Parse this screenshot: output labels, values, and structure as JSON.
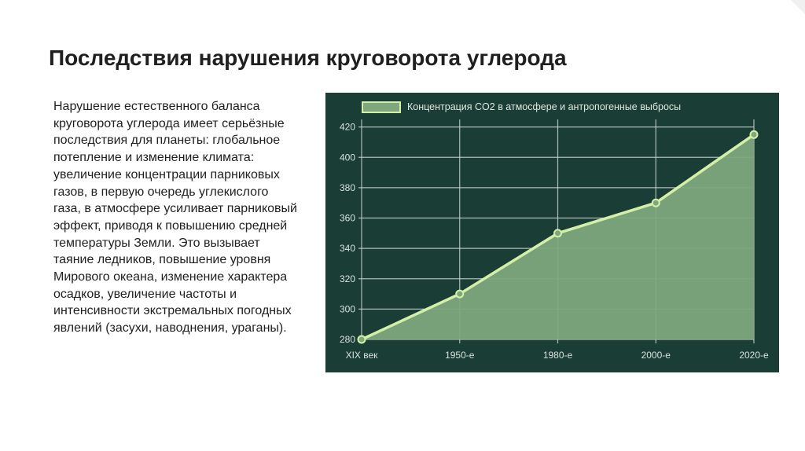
{
  "slide": {
    "title": "Последствия нарушения круговорота углерода",
    "body": "Нарушение естественного баланса круговорота углерода имеет серьёзные последствия для планеты: глобальное потепление и изменение климата: увеличение концентрации парниковых газов, в первую очередь углекислого газа, в атмосфере усиливает парниковый эффект, приводя к повышению средней температуры Земли. Это вызывает таяние ледников, повышение уровня Мирового океана, изменение характера осадков, увеличение частоты и интенсивности экстремальных погодных явлений (засухи, наводнения, ураганы)."
  },
  "chart_data": {
    "type": "area",
    "categories": [
      "XIX век",
      "1950-е",
      "1980-е",
      "2000-е",
      "2020-е"
    ],
    "series": [
      {
        "name": "Концентрация CO2 в атмосфере и антропогенные выбросы",
        "values": [
          280,
          310,
          350,
          370,
          415
        ]
      }
    ],
    "yticks": [
      280,
      300,
      320,
      340,
      360,
      380,
      400,
      420
    ],
    "ylim": [
      280,
      425
    ],
    "grid": true,
    "legend_position": "top-left",
    "colors": {
      "background": "#1a3d36",
      "fill": "#7ea77d",
      "line": "#d4f0a8",
      "grid": "#c9d1cd",
      "text": "#d8e2dc"
    }
  }
}
